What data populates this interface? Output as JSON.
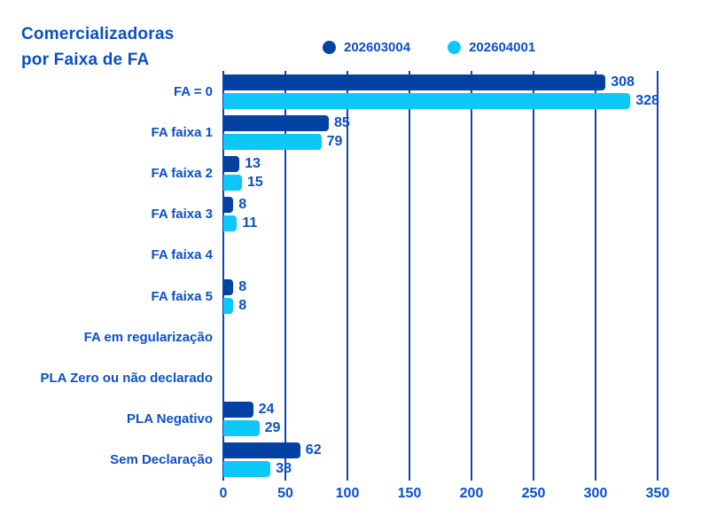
{
  "title": {
    "line1": "Comercializadoras",
    "line2": "por Faixa de FA"
  },
  "colors": {
    "background": "#ffffff",
    "text": "#0b4fc8",
    "grid": "#0d45b2",
    "series_202603004": "#0341a2",
    "series_202604001": "#0bc8f8"
  },
  "chart_data": {
    "type": "bar",
    "orientation": "horizontal",
    "title": "Comercializadoras por Faixa de FA",
    "categories": [
      "FA = 0",
      "FA faixa 1",
      "FA faixa 2",
      "FA faixa 3",
      "FA faixa 4",
      "FA faixa 5",
      "FA em regularização",
      "PLA Zero ou não declarado",
      "PLA Negativo",
      "Sem Declaração"
    ],
    "series": [
      {
        "name": "202603004",
        "color": "#0341a2",
        "values": [
          308,
          85,
          13,
          8,
          0,
          8,
          0,
          0,
          24,
          62
        ]
      },
      {
        "name": "202604001",
        "color": "#0bc8f8",
        "values": [
          328,
          79,
          15,
          11,
          0,
          8,
          0,
          0,
          29,
          38
        ]
      }
    ],
    "value_labels_shown": true,
    "x_ticks": [
      0,
      50,
      100,
      150,
      200,
      250,
      300,
      350
    ],
    "xlim": [
      0,
      350
    ],
    "xlabel": "",
    "ylabel": "",
    "grid": true,
    "legend_position": "top"
  }
}
